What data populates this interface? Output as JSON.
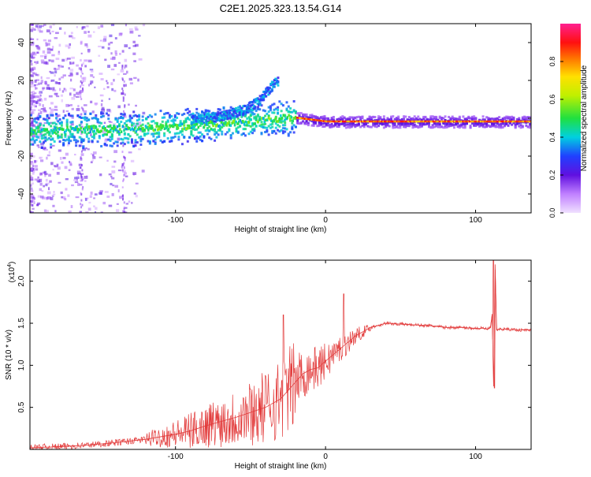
{
  "title": "C2E1.2025.323.13.54.G14",
  "colorbar": {
    "label": "Normalized spectral amplitude",
    "ticks": [
      "0.0",
      "0.2",
      "0.4",
      "0.6",
      "0.8"
    ],
    "tick_values": [
      0.0,
      0.2,
      0.4,
      0.6,
      0.8
    ],
    "range": [
      0,
      1
    ]
  },
  "chart_data": [
    {
      "type": "heatmap",
      "title": "",
      "xlabel": "Height of straight line (km)",
      "ylabel": "Frequency (Hz)",
      "xlim": [
        -197,
        137
      ],
      "ylim": [
        -50,
        50
      ],
      "xticks": [
        -100,
        0,
        100
      ],
      "xtick_labels": [
        "-100",
        "0",
        "100"
      ],
      "yticks": [
        -40,
        -20,
        0,
        20,
        40
      ],
      "ytick_labels": [
        "-40",
        "-20",
        "0",
        "20",
        "40"
      ],
      "ridge": {
        "x": [
          -195,
          -170,
          -150,
          -130,
          -110,
          -90,
          -70,
          -50,
          -30,
          -20,
          -10,
          0,
          20,
          50,
          80,
          100,
          120,
          137
        ],
        "freq": [
          -7,
          -6,
          -6,
          -6,
          -5,
          -4,
          -3,
          -2,
          0,
          0,
          -1,
          -2,
          -2,
          -2,
          -2,
          -2,
          -2,
          -2
        ]
      },
      "branch": {
        "x": [
          -90,
          -70,
          -55,
          -45,
          -40,
          -35,
          -32
        ],
        "freq": [
          -1,
          1,
          4,
          9,
          14,
          18,
          20
        ]
      }
    },
    {
      "type": "line",
      "title": "",
      "xlabel": "Height of straight line (km)",
      "ylabel": "SNR (10 * v/v)",
      "y_multiplier": "(x10",
      "y_multiplier_exp": "4",
      "y_multiplier_close": ")",
      "xlim": [
        -197,
        137
      ],
      "ylim": [
        0,
        2.25
      ],
      "xticks": [
        -100,
        0,
        100
      ],
      "xtick_labels": [
        "-100",
        "0",
        "100"
      ],
      "yticks": [
        0.5,
        1.0,
        1.5,
        2.0
      ],
      "ytick_labels": [
        "0.5",
        "1.0",
        "1.5",
        "2.0"
      ],
      "color": "#e23a3a",
      "series": [
        {
          "name": "SNR",
          "x": [
            -197,
            -180,
            -160,
            -140,
            -120,
            -100,
            -90,
            -80,
            -70,
            -60,
            -50,
            -40,
            -30,
            -25,
            -20,
            -15,
            -10,
            -5,
            0,
            10,
            20,
            30,
            40,
            50,
            60,
            70,
            80,
            90,
            100,
            105,
            108,
            110,
            111,
            112,
            113,
            114,
            116,
            120,
            130,
            137
          ],
          "y": [
            0.02,
            0.03,
            0.05,
            0.08,
            0.12,
            0.18,
            0.22,
            0.28,
            0.33,
            0.38,
            0.44,
            0.5,
            0.6,
            0.7,
            0.8,
            0.9,
            0.95,
            0.97,
            1.05,
            1.2,
            1.35,
            1.45,
            1.5,
            1.49,
            1.48,
            1.47,
            1.45,
            1.45,
            1.44,
            1.44,
            1.43,
            1.45,
            1.6,
            0.75,
            2.2,
            1.42,
            1.43,
            1.43,
            1.42,
            1.42
          ]
        }
      ],
      "spikes": [
        {
          "x": -28,
          "y": 1.6
        },
        {
          "x": 12,
          "y": 1.85
        },
        {
          "x": 112,
          "y": 2.25
        },
        {
          "x": 112.5,
          "y": 0.73
        }
      ]
    }
  ]
}
